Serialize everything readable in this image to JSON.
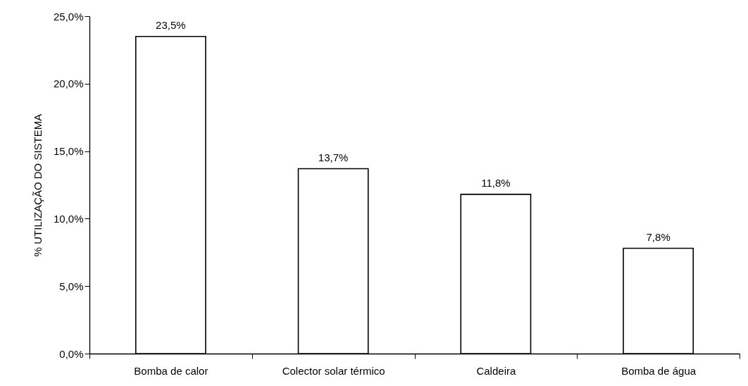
{
  "chart_data": {
    "type": "bar",
    "ylabel": "% UTILIZAÇÃO DO SISTEMA",
    "categories": [
      "Bomba de calor",
      "Colector solar térmico",
      "Caldeira",
      "Bomba de água"
    ],
    "values": [
      23.5,
      13.7,
      11.8,
      7.8
    ],
    "value_labels": [
      "23,5%",
      "13,7%",
      "11,8%",
      "7,8%"
    ],
    "color": "#ffffff",
    "ylim": [
      0,
      25
    ],
    "yticks": [
      {
        "value": 0,
        "label": "0,0%"
      },
      {
        "value": 5,
        "label": "5,0%"
      },
      {
        "value": 10,
        "label": "10,0%"
      },
      {
        "value": 15,
        "label": "15,0%"
      },
      {
        "value": 20,
        "label": "20,0%"
      },
      {
        "value": 25,
        "label": "25,0%"
      }
    ],
    "grid": false
  }
}
